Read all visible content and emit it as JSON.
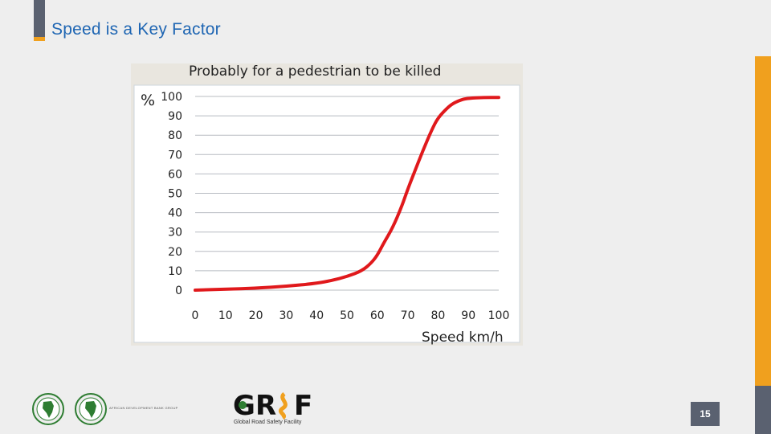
{
  "slide": {
    "title": "Speed is a Key Factor",
    "page_number": "15"
  },
  "logos": {
    "afdb_text": "AFRICAN DEVELOPMENT BANK GROUP",
    "grsf_wordmark": "GRSF",
    "grsf_caption": "Global Road Safety Facility"
  },
  "colors": {
    "title": "#1f66b3",
    "accent_orange": "#f0a01e",
    "bar_gray": "#5a6170",
    "curve_red": "#e0191c"
  },
  "chart_data": {
    "type": "line",
    "title": "Probably for a pedestrian to be killed",
    "ylabel": "%",
    "xlabel": "Speed km/h",
    "xlim": [
      0,
      100
    ],
    "ylim": [
      0,
      100
    ],
    "x_ticks": [
      "0",
      "10",
      "20",
      "30",
      "40",
      "50",
      "60",
      "70",
      "80",
      "90",
      "100"
    ],
    "y_ticks": [
      "0",
      "10",
      "20",
      "30",
      "40",
      "50",
      "60",
      "70",
      "80",
      "90",
      "100"
    ],
    "grid": true,
    "series": [
      {
        "x": [
          0,
          10,
          20,
          30,
          40,
          45,
          50,
          55,
          58,
          60,
          62,
          65,
          68,
          70,
          72,
          75,
          78,
          80,
          83,
          85,
          88,
          90,
          95,
          100
        ],
        "y": [
          0,
          0.5,
          1,
          2,
          3.5,
          5,
          7,
          10,
          14,
          18,
          24,
          32,
          43,
          52,
          60,
          72,
          83,
          89,
          94,
          96.5,
          98.5,
          99,
          99.5,
          99.5
        ]
      }
    ]
  }
}
